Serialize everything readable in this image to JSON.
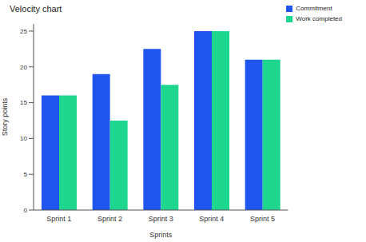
{
  "chart_data": {
    "type": "bar",
    "title": "Velocity chart",
    "x_label": "Sprints",
    "y_label": "Story points",
    "categories": [
      "Sprint 1",
      "Sprint 2",
      "Sprint 3",
      "Sprint 4",
      "Sprint 5"
    ],
    "series": [
      {
        "name": "Commitment",
        "color": "#1f55ee",
        "values": [
          16,
          19,
          22.5,
          25,
          21
        ]
      },
      {
        "name": "Work completed",
        "color": "#1fd68f",
        "values": [
          16,
          12.5,
          17.5,
          25,
          21
        ]
      }
    ],
    "ylim": [
      0,
      26
    ],
    "yticks": [
      0,
      5,
      10,
      15,
      20,
      25
    ],
    "grid": false,
    "legend": "upper right"
  }
}
